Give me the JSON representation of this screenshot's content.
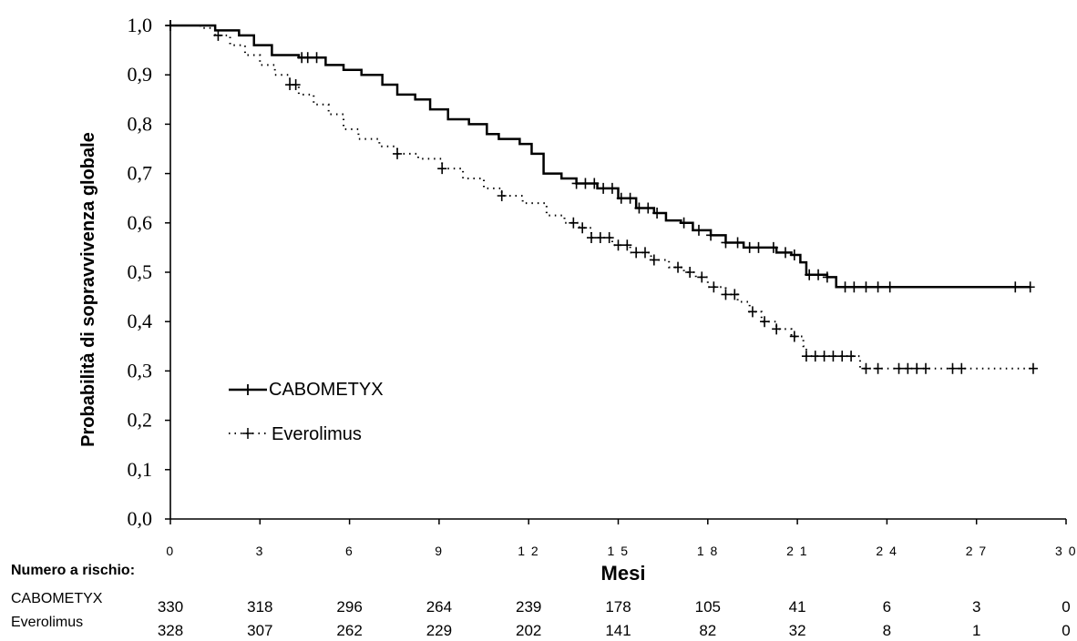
{
  "chart_data": {
    "type": "line",
    "xlabel": "Mesi",
    "ylabel": "Probabilità di sopravvivenza globale",
    "xlim": [
      0,
      30
    ],
    "ylim": [
      0,
      1
    ],
    "x_ticks": [
      "0",
      "3",
      "6",
      "9",
      "1 2",
      "1 5",
      "1 8",
      "2 1",
      "2 4",
      "2 7",
      "3 0"
    ],
    "y_ticks": [
      "0,0",
      "0,1",
      "0,2",
      "0,3",
      "0,4",
      "0,5",
      "0,6",
      "0,7",
      "0,8",
      "0,9",
      "1,0"
    ],
    "legend_position": "lower-left",
    "series": [
      {
        "name": "CABOMETYX",
        "style": "solid",
        "color": "#000000",
        "points": [
          [
            0,
            1.0
          ],
          [
            1,
            1.0
          ],
          [
            1.5,
            0.99
          ],
          [
            2.3,
            0.98
          ],
          [
            2.8,
            0.96
          ],
          [
            3.4,
            0.94
          ],
          [
            4.3,
            0.935
          ],
          [
            5.2,
            0.92
          ],
          [
            5.8,
            0.91
          ],
          [
            6.4,
            0.9
          ],
          [
            7.1,
            0.88
          ],
          [
            7.6,
            0.86
          ],
          [
            8.2,
            0.85
          ],
          [
            8.7,
            0.83
          ],
          [
            9.3,
            0.81
          ],
          [
            10.0,
            0.8
          ],
          [
            10.6,
            0.78
          ],
          [
            11.0,
            0.77
          ],
          [
            11.7,
            0.76
          ],
          [
            12.1,
            0.74
          ],
          [
            12.5,
            0.7
          ],
          [
            13.1,
            0.69
          ],
          [
            13.6,
            0.68
          ],
          [
            14.3,
            0.67
          ],
          [
            15.0,
            0.65
          ],
          [
            15.6,
            0.63
          ],
          [
            16.2,
            0.62
          ],
          [
            16.6,
            0.605
          ],
          [
            17.1,
            0.6
          ],
          [
            17.5,
            0.585
          ],
          [
            18.1,
            0.575
          ],
          [
            18.6,
            0.56
          ],
          [
            19.2,
            0.55
          ],
          [
            19.8,
            0.55
          ],
          [
            20.3,
            0.54
          ],
          [
            20.8,
            0.535
          ],
          [
            21.1,
            0.52
          ],
          [
            21.3,
            0.495
          ],
          [
            22.0,
            0.49
          ],
          [
            22.3,
            0.47
          ],
          [
            24.0,
            0.47
          ],
          [
            28.8,
            0.47
          ]
        ],
        "censor_x": [
          0,
          4.4,
          4.6,
          4.9,
          13.6,
          13.9,
          14.2,
          14.5,
          14.8,
          15.1,
          15.4,
          15.7,
          16.0,
          16.3,
          17.2,
          17.7,
          18.1,
          18.6,
          19.0,
          19.4,
          19.7,
          20.2,
          20.6,
          20.9,
          21.4,
          21.7,
          22.0,
          22.6,
          22.9,
          23.3,
          23.7,
          24.1,
          28.3,
          28.8
        ]
      },
      {
        "name": "Everolimus",
        "style": "dotted",
        "color": "#000000",
        "points": [
          [
            0,
            1.0
          ],
          [
            1.0,
            0.995
          ],
          [
            1.5,
            0.98
          ],
          [
            2.0,
            0.96
          ],
          [
            2.5,
            0.94
          ],
          [
            3.0,
            0.92
          ],
          [
            3.5,
            0.9
          ],
          [
            4.0,
            0.88
          ],
          [
            4.3,
            0.86
          ],
          [
            4.8,
            0.84
          ],
          [
            5.3,
            0.82
          ],
          [
            5.8,
            0.79
          ],
          [
            6.3,
            0.77
          ],
          [
            7.0,
            0.755
          ],
          [
            7.6,
            0.74
          ],
          [
            8.3,
            0.73
          ],
          [
            9.1,
            0.71
          ],
          [
            9.8,
            0.69
          ],
          [
            10.5,
            0.67
          ],
          [
            11.1,
            0.655
          ],
          [
            11.8,
            0.64
          ],
          [
            12.6,
            0.615
          ],
          [
            13.2,
            0.6
          ],
          [
            13.7,
            0.59
          ],
          [
            14.1,
            0.57
          ],
          [
            14.8,
            0.555
          ],
          [
            15.4,
            0.54
          ],
          [
            16.1,
            0.525
          ],
          [
            16.7,
            0.51
          ],
          [
            17.2,
            0.5
          ],
          [
            17.6,
            0.49
          ],
          [
            18.0,
            0.47
          ],
          [
            18.6,
            0.455
          ],
          [
            19.0,
            0.44
          ],
          [
            19.4,
            0.42
          ],
          [
            19.8,
            0.4
          ],
          [
            20.3,
            0.385
          ],
          [
            20.8,
            0.37
          ],
          [
            21.2,
            0.35
          ],
          [
            21.3,
            0.33
          ],
          [
            23.0,
            0.33
          ],
          [
            23.1,
            0.305
          ],
          [
            28.8,
            0.305
          ]
        ],
        "censor_x": [
          0,
          1.6,
          4.0,
          4.2,
          7.6,
          9.1,
          11.1,
          13.5,
          13.8,
          14.1,
          14.4,
          14.7,
          15.0,
          15.3,
          15.6,
          15.9,
          16.2,
          17.0,
          17.4,
          17.8,
          18.2,
          18.6,
          18.9,
          19.5,
          19.9,
          20.3,
          20.9,
          21.3,
          21.6,
          21.9,
          22.2,
          22.5,
          22.8,
          23.3,
          23.7,
          24.4,
          24.7,
          25.0,
          25.3,
          26.2,
          26.5,
          28.9
        ]
      }
    ],
    "risk_table": {
      "title": "Numero a rischio:",
      "at_x": [
        0,
        3,
        6,
        9,
        12,
        15,
        18,
        21,
        24,
        27,
        30
      ],
      "rows": [
        {
          "label": "CABOMETYX",
          "values": [
            "330",
            "318",
            "296",
            "264",
            "239",
            "178",
            "105",
            "41",
            "6",
            "3",
            "0"
          ]
        },
        {
          "label": "Everolimus",
          "values": [
            "328",
            "307",
            "262",
            "229",
            "202",
            "141",
            "82",
            "32",
            "8",
            "1",
            "0"
          ]
        }
      ]
    }
  }
}
